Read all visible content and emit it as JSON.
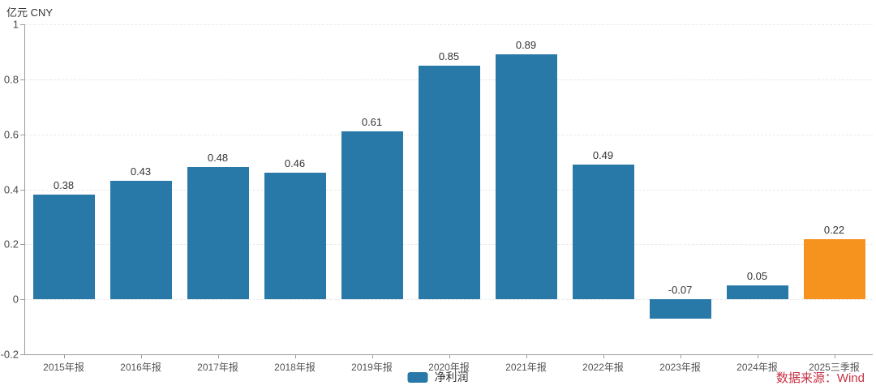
{
  "unit_label": "亿元 CNY",
  "legend": {
    "label": "净利润"
  },
  "source_label": "数据来源：Wind",
  "colors": {
    "bar_default": "#2878a8",
    "bar_highlight": "#f6921e",
    "source_text": "#c73144",
    "axis_line": "#9b9b9b",
    "grid_line": "#eaeaea",
    "value_text": "#333333",
    "tick_text": "#4a4a4a"
  },
  "chart_data": {
    "type": "bar",
    "title": "",
    "ylabel": "亿元 CNY",
    "categories": [
      "2015年报",
      "2016年报",
      "2017年报",
      "2018年报",
      "2019年报",
      "2020年报",
      "2021年报",
      "2022年报",
      "2023年报",
      "2024年报",
      "2025三季报"
    ],
    "series": [
      {
        "name": "净利润",
        "values": [
          0.38,
          0.43,
          0.48,
          0.46,
          0.61,
          0.85,
          0.89,
          0.49,
          -0.07,
          0.05,
          0.22
        ]
      }
    ],
    "value_labels": [
      "0.38",
      "0.43",
      "0.48",
      "0.46",
      "0.61",
      "0.85",
      "0.89",
      "0.49",
      "-0.07",
      "0.05",
      "0.22"
    ],
    "bar_colors": [
      "#2878a8",
      "#2878a8",
      "#2878a8",
      "#2878a8",
      "#2878a8",
      "#2878a8",
      "#2878a8",
      "#2878a8",
      "#2878a8",
      "#2878a8",
      "#f6921e"
    ],
    "ylim": [
      -0.2,
      1
    ],
    "ytick_step": 0.2,
    "grid": "horizontal-dashed",
    "legend_position": "bottom-center"
  }
}
